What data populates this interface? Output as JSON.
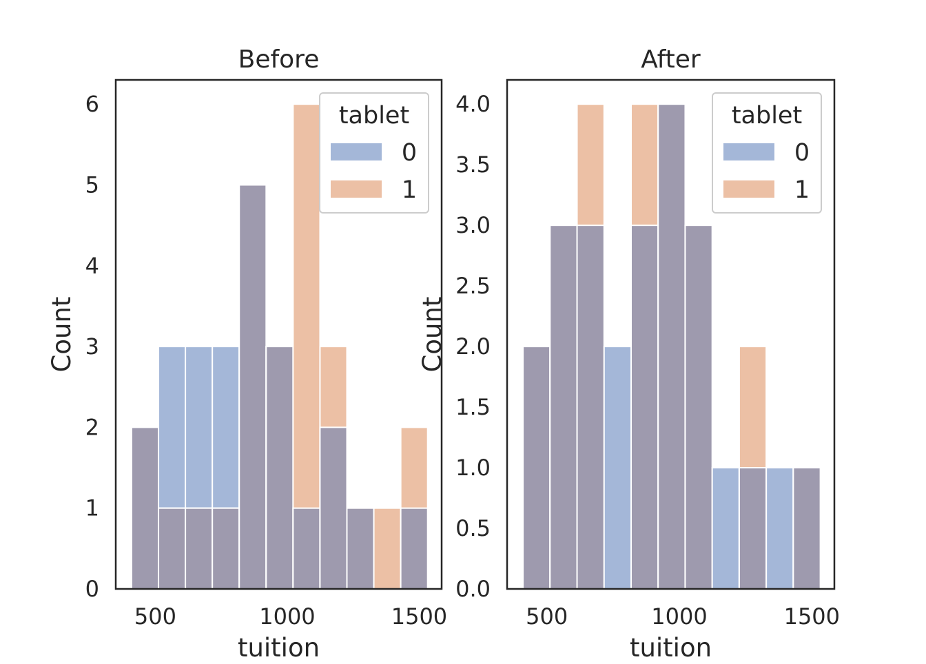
{
  "chart_data": [
    {
      "type": "bar",
      "title": "Before",
      "xlabel": "tuition",
      "ylabel": "Count",
      "xlim": [
        350,
        1585
      ],
      "ylim": [
        0,
        6.3
      ],
      "xticks": [
        "500",
        "1000",
        "1500"
      ],
      "xtick_values": [
        500,
        1000,
        1500
      ],
      "yticks": [
        "0",
        "1",
        "2",
        "3",
        "4",
        "5",
        "6"
      ],
      "ytick_values": [
        0,
        1,
        2,
        3,
        4,
        5,
        6
      ],
      "grid": false,
      "legend": {
        "title": "tablet",
        "placement": "top-right"
      },
      "bin_edges": [
        410,
        512,
        614,
        716,
        818,
        920,
        1022,
        1124,
        1226,
        1328,
        1430,
        1532
      ],
      "series": [
        {
          "name": "0",
          "color": "#a4b7d8",
          "values": [
            2,
            3,
            3,
            3,
            5,
            3,
            1,
            2,
            1,
            0,
            1
          ]
        },
        {
          "name": "1",
          "color": "#ecc0a5",
          "values": [
            2,
            1,
            1,
            1,
            5,
            3,
            6,
            3,
            1,
            1,
            2
          ]
        }
      ]
    },
    {
      "type": "bar",
      "title": "After",
      "xlabel": "tuition",
      "ylabel": "Count",
      "xlim": [
        350,
        1585
      ],
      "ylim": [
        0,
        4.2
      ],
      "xticks": [
        "500",
        "1000",
        "1500"
      ],
      "xtick_values": [
        500,
        1000,
        1500
      ],
      "yticks": [
        "0.0",
        "0.5",
        "1.0",
        "1.5",
        "2.0",
        "2.5",
        "3.0",
        "3.5",
        "4.0"
      ],
      "ytick_values": [
        0,
        0.5,
        1,
        1.5,
        2,
        2.5,
        3,
        3.5,
        4
      ],
      "grid": false,
      "legend": {
        "title": "tablet",
        "placement": "top-right"
      },
      "bin_edges": [
        410,
        512,
        614,
        716,
        818,
        920,
        1022,
        1124,
        1226,
        1328,
        1430,
        1532
      ],
      "series": [
        {
          "name": "0",
          "color": "#a4b7d8",
          "values": [
            2,
            3,
            3,
            2,
            3,
            4,
            3,
            1,
            1,
            1,
            1
          ]
        },
        {
          "name": "1",
          "color": "#ecc0a5",
          "values": [
            2,
            3,
            4,
            0,
            4,
            4,
            3,
            0,
            2,
            0,
            1
          ]
        }
      ]
    }
  ]
}
